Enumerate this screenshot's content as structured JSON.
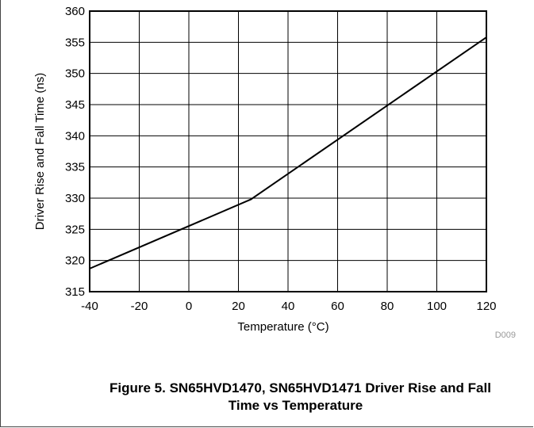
{
  "chart_data": {
    "type": "line",
    "xlabel": "Temperature (°C)",
    "ylabel": "Driver Rise and Fall Time (ns)",
    "xlim": [
      -40,
      120
    ],
    "ylim": [
      315,
      360
    ],
    "xticks": [
      -40,
      -20,
      0,
      20,
      40,
      60,
      80,
      100,
      120
    ],
    "yticks": [
      315,
      320,
      325,
      330,
      335,
      340,
      345,
      350,
      355,
      360
    ],
    "grid": true,
    "series": [
      {
        "x": [
          -40,
          25,
          120
        ],
        "values": [
          318.7,
          329.8,
          355.8
        ]
      }
    ],
    "code_label": "D009"
  },
  "caption": {
    "line1": "Figure 5. SN65HVD1470, SN65HVD1471 Driver Rise and Fall",
    "line2": "Time vs Temperature"
  }
}
